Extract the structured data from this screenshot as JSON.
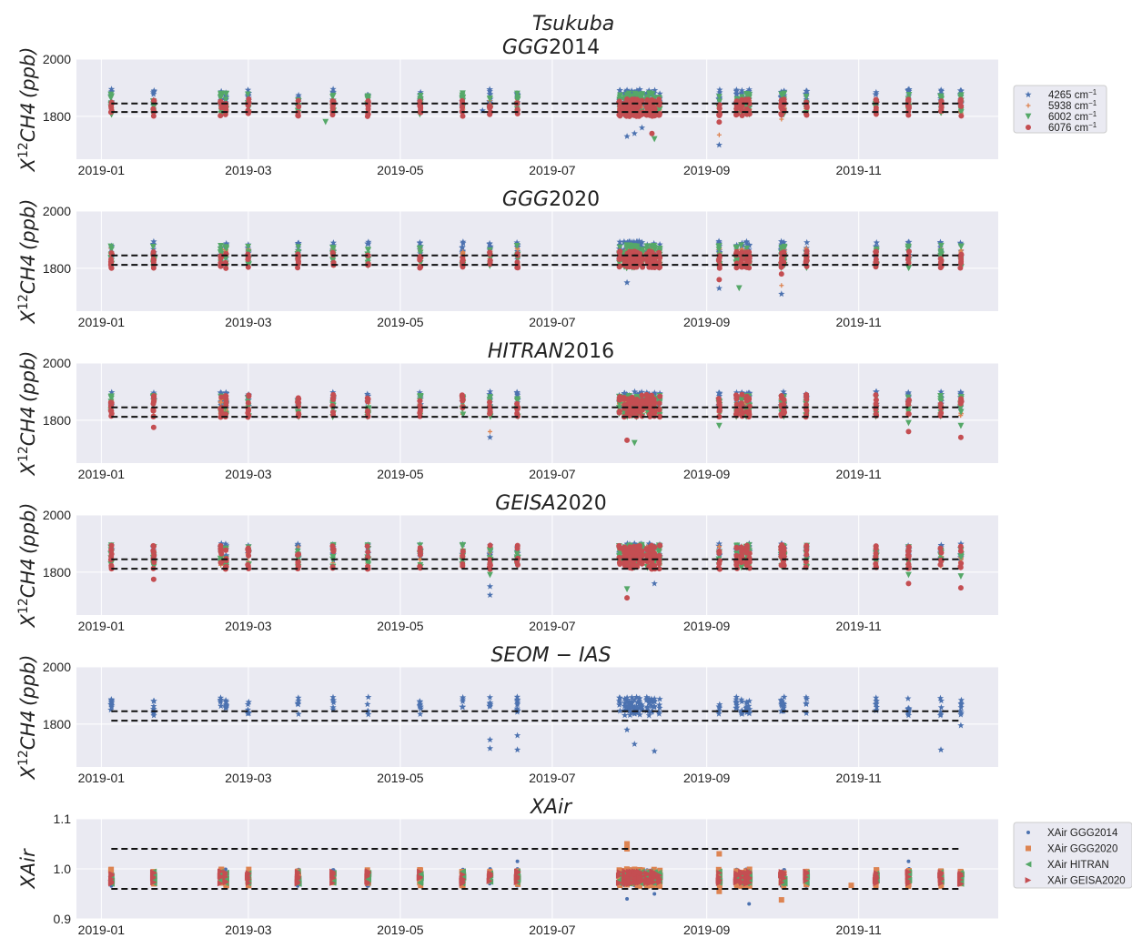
{
  "figure": {
    "suptitle": "Tsukuba"
  },
  "colors": {
    "s4265": "#4c72b0",
    "s5938": "#dd8452",
    "s6002": "#55a868",
    "s6076": "#c44e52",
    "axes_bg": "#eaeaf2"
  },
  "chart_data": [
    {
      "type": "scatter",
      "title": "GGG2014",
      "title_italic": "GGG",
      "title_rest": "2014",
      "ylabel": "X12CH4 (ppb)",
      "ylim": [
        1650,
        2000
      ],
      "yticks": [
        1800,
        2000
      ],
      "x_dates": [
        "2019-01",
        "2019-03",
        "2019-05",
        "2019-07",
        "2019-09",
        "2019-11"
      ],
      "xlim_days": [
        -10,
        360
      ],
      "ref_lines": [
        1815,
        1845
      ],
      "series": [
        {
          "name": "4265 cm⁻¹",
          "marker": "star",
          "color": "#4c72b0",
          "spread": [
            1830,
            1895
          ],
          "outliers": [
            [
              211,
              1730
            ],
            [
              214,
              1740
            ],
            [
              217,
              1760
            ],
            [
              248,
              1700
            ],
            [
              153,
              1820
            ]
          ]
        },
        {
          "name": "5938 cm⁻¹",
          "marker": "plus",
          "color": "#dd8452",
          "spread": [
            1810,
            1860
          ],
          "outliers": [
            [
              248,
              1735
            ],
            [
              273,
              1790
            ]
          ]
        },
        {
          "name": "6002 cm⁻¹",
          "marker": "tri",
          "color": "#55a868",
          "spread": [
            1805,
            1880
          ],
          "outliers": [
            [
              90,
              1780
            ],
            [
              222,
              1720
            ]
          ]
        },
        {
          "name": "6076 cm⁻¹",
          "marker": "circle",
          "color": "#c44e52",
          "spread": [
            1800,
            1860
          ],
          "outliers": [
            [
              221,
              1740
            ],
            [
              248,
              1780
            ]
          ]
        }
      ]
    },
    {
      "type": "scatter",
      "title": "GGG2020",
      "title_italic": "GGG",
      "title_rest": "2020",
      "ylabel": "X12CH4 (ppb)",
      "ylim": [
        1650,
        2000
      ],
      "yticks": [
        1800,
        2000
      ],
      "x_dates": [
        "2019-01",
        "2019-03",
        "2019-05",
        "2019-07",
        "2019-09",
        "2019-11"
      ],
      "xlim_days": [
        -10,
        360
      ],
      "ref_lines": [
        1812,
        1845
      ],
      "series": [
        {
          "name": "4265 cm⁻¹",
          "marker": "star",
          "color": "#4c72b0",
          "spread": [
            1830,
            1895
          ],
          "outliers": [
            [
              211,
              1750
            ],
            [
              248,
              1730
            ],
            [
              273,
              1710
            ]
          ]
        },
        {
          "name": "5938 cm⁻¹",
          "marker": "plus",
          "color": "#dd8452",
          "spread": [
            1810,
            1870
          ],
          "outliers": [
            [
              273,
              1740
            ]
          ]
        },
        {
          "name": "6002 cm⁻¹",
          "marker": "tri",
          "color": "#55a868",
          "spread": [
            1800,
            1880
          ],
          "outliers": [
            [
              256,
              1730
            ]
          ]
        },
        {
          "name": "6076 cm⁻¹",
          "marker": "circle",
          "color": "#c44e52",
          "spread": [
            1800,
            1860
          ],
          "outliers": [
            [
              248,
              1760
            ],
            [
              273,
              1780
            ]
          ]
        }
      ]
    },
    {
      "type": "scatter",
      "title": "HITRAN2016",
      "title_italic": "HITRAN",
      "title_rest": "2016",
      "ylabel": "X12CH4 (ppb)",
      "ylim": [
        1650,
        2000
      ],
      "yticks": [
        1800,
        2000
      ],
      "x_dates": [
        "2019-01",
        "2019-03",
        "2019-05",
        "2019-07",
        "2019-09",
        "2019-11"
      ],
      "xlim_days": [
        -10,
        360
      ],
      "ref_lines": [
        1812,
        1845
      ],
      "series": [
        {
          "name": "4265 cm⁻¹",
          "marker": "star",
          "color": "#4c72b0",
          "spread": [
            1840,
            1900
          ],
          "outliers": [
            [
              156,
              1740
            ],
            [
              156,
              1875
            ],
            [
              324,
              1880
            ]
          ]
        },
        {
          "name": "5938 cm⁻¹",
          "marker": "plus",
          "color": "#dd8452",
          "spread": [
            1815,
            1875
          ],
          "outliers": [
            [
              156,
              1760
            ]
          ]
        },
        {
          "name": "6002 cm⁻¹",
          "marker": "tri",
          "color": "#55a868",
          "spread": [
            1810,
            1885
          ],
          "outliers": [
            [
              214,
              1720
            ],
            [
              248,
              1780
            ],
            [
              324,
              1790
            ],
            [
              345,
              1780
            ]
          ]
        },
        {
          "name": "6076 cm⁻¹",
          "marker": "circle",
          "color": "#c44e52",
          "spread": [
            1810,
            1890
          ],
          "outliers": [
            [
              21,
              1775
            ],
            [
              211,
              1730
            ],
            [
              324,
              1760
            ],
            [
              345,
              1740
            ]
          ]
        }
      ]
    },
    {
      "type": "scatter",
      "title": "GEISA2020",
      "title_italic": "GEISA",
      "title_rest": "2020",
      "ylabel": "X12CH4 (ppb)",
      "ylim": [
        1650,
        2000
      ],
      "yticks": [
        1800,
        2000
      ],
      "x_dates": [
        "2019-01",
        "2019-03",
        "2019-05",
        "2019-07",
        "2019-09",
        "2019-11"
      ],
      "xlim_days": [
        -10,
        360
      ],
      "ref_lines": [
        1812,
        1845
      ],
      "series": [
        {
          "name": "4265 cm⁻¹",
          "marker": "star",
          "color": "#4c72b0",
          "spread": [
            1840,
            1900
          ],
          "outliers": [
            [
              156,
              1720
            ],
            [
              156,
              1750
            ],
            [
              222,
              1760
            ]
          ]
        },
        {
          "name": "5938 cm⁻¹",
          "marker": "plus",
          "color": "#dd8452",
          "spread": [
            1820,
            1890
          ],
          "outliers": [
            [
              248,
              1890
            ]
          ]
        },
        {
          "name": "6002 cm⁻¹",
          "marker": "tri",
          "color": "#55a868",
          "spread": [
            1815,
            1895
          ],
          "outliers": [
            [
              156,
              1790
            ],
            [
              211,
              1740
            ],
            [
              324,
              1790
            ],
            [
              345,
              1785
            ]
          ]
        },
        {
          "name": "6076 cm⁻¹",
          "marker": "circle",
          "color": "#c44e52",
          "spread": [
            1810,
            1895
          ],
          "outliers": [
            [
              21,
              1775
            ],
            [
              211,
              1710
            ],
            [
              324,
              1760
            ],
            [
              345,
              1745
            ]
          ]
        }
      ]
    },
    {
      "type": "scatter",
      "title": "SEOM − IAS",
      "title_italic": "SEOM − IAS",
      "title_rest": "",
      "ylabel": "X12CH4 (ppb)",
      "ylim": [
        1650,
        2000
      ],
      "yticks": [
        1800,
        2000
      ],
      "x_dates": [
        "2019-01",
        "2019-03",
        "2019-05",
        "2019-07",
        "2019-09",
        "2019-11"
      ],
      "xlim_days": [
        -10,
        360
      ],
      "ref_lines": [
        1812,
        1845
      ],
      "series": [
        {
          "name": "4265 cm⁻¹",
          "marker": "star",
          "color": "#4c72b0",
          "spread": [
            1830,
            1895
          ],
          "outliers": [
            [
              156,
              1715
            ],
            [
              156,
              1745
            ],
            [
              167,
              1710
            ],
            [
              167,
              1760
            ],
            [
              211,
              1780
            ],
            [
              214,
              1730
            ],
            [
              222,
              1705
            ],
            [
              337,
              1710
            ],
            [
              345,
              1795
            ]
          ]
        }
      ]
    },
    {
      "type": "scatter",
      "title": "XAir",
      "title_italic": "XAir",
      "title_rest": "",
      "ylabel": "XAir",
      "ylim": [
        0.9,
        1.1
      ],
      "yticks": [
        0.9,
        1.0,
        1.1
      ],
      "x_dates": [
        "2019-01",
        "2019-03",
        "2019-05",
        "2019-07",
        "2019-09",
        "2019-11"
      ],
      "xlim_days": [
        -10,
        360
      ],
      "ref_lines": [
        0.96,
        1.04
      ],
      "series": [
        {
          "name": "XAir GGG2014",
          "marker": "dot",
          "color": "#4c72b0",
          "spread": [
            0.965,
            1.0
          ],
          "outliers": [
            [
              167,
              1.015
            ],
            [
              211,
              0.94
            ],
            [
              222,
              0.95
            ],
            [
              260,
              0.93
            ],
            [
              324,
              1.015
            ]
          ]
        },
        {
          "name": "XAir GGG2020",
          "marker": "square",
          "color": "#dd8452",
          "spread": [
            0.965,
            1.0
          ],
          "outliers": [
            [
              211,
              1.05
            ],
            [
              211,
              1.04
            ],
            [
              248,
              1.03
            ],
            [
              248,
              0.955
            ],
            [
              273,
              0.938
            ],
            [
              301,
              0.967
            ]
          ]
        },
        {
          "name": "XAir HITRAN",
          "marker": "triangle-left",
          "color": "#55a868",
          "spread": [
            0.97,
            0.995
          ],
          "outliers": []
        },
        {
          "name": "XAir GEISA2020",
          "marker": "triangle-right",
          "color": "#c44e52",
          "spread": [
            0.97,
            0.995
          ],
          "outliers": []
        }
      ]
    }
  ],
  "observation_days": [
    4,
    21,
    48,
    50,
    59,
    79,
    93,
    107,
    128,
    145,
    156,
    167,
    208,
    210,
    211,
    212,
    213,
    214,
    215,
    216,
    217,
    219,
    220,
    221,
    222,
    224,
    248,
    255,
    257,
    259,
    260,
    273,
    274,
    283,
    311,
    324,
    337,
    345
  ],
  "legend_top": {
    "labels": [
      "4265 cm",
      "5938 cm",
      "6002 cm",
      "6076 cm"
    ],
    "superscript": "−1"
  },
  "legend_bottom": {
    "labels": [
      "XAir GGG2014",
      "XAir GGG2020",
      "XAir HITRAN",
      "XAir GEISA2020"
    ]
  }
}
